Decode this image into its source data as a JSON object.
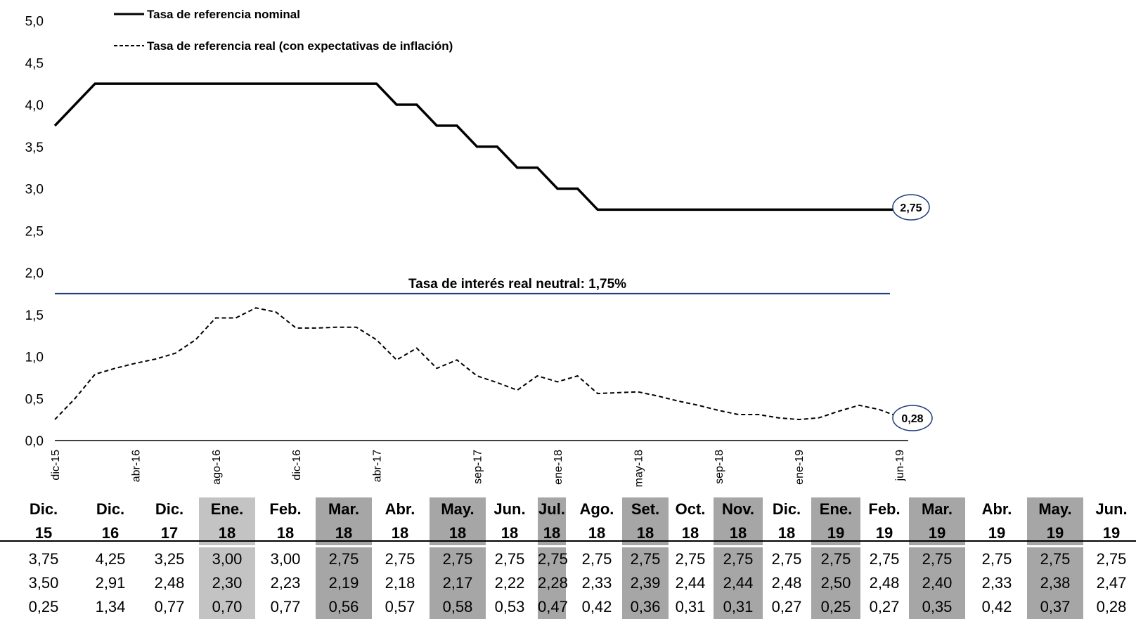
{
  "chart_data": {
    "type": "line",
    "y_ticks": [
      "0,0",
      "0,5",
      "1,0",
      "1,5",
      "2,0",
      "2,5",
      "3,0",
      "3,5",
      "4,0",
      "4,5",
      "5,0"
    ],
    "ylim": [
      0,
      5
    ],
    "x_ticks": [
      "dic-15",
      "abr-16",
      "ago-16",
      "dic-16",
      "abr-17",
      "sep-17",
      "ene-18",
      "may-18",
      "sep-18",
      "ene-19",
      "jun-19"
    ],
    "series": [
      {
        "name": "Tasa de referencia nominal",
        "style": "solid",
        "color": "#000000",
        "values": [
          3.75,
          4.0,
          4.25,
          4.25,
          4.25,
          4.25,
          4.25,
          4.25,
          4.25,
          4.25,
          4.25,
          4.25,
          4.25,
          4.25,
          4.25,
          4.25,
          4.25,
          4.0,
          4.0,
          3.75,
          3.75,
          3.5,
          3.5,
          3.25,
          3.25,
          3.0,
          3.0,
          2.75,
          2.75,
          2.75,
          2.75,
          2.75,
          2.75,
          2.75,
          2.75,
          2.75,
          2.75,
          2.75,
          2.75,
          2.75,
          2.75,
          2.75,
          2.75
        ]
      },
      {
        "name": "Tasa de referencia real (con expectativas de inflación)",
        "style": "dashed",
        "color": "#000000",
        "values": [
          0.25,
          0.5,
          0.79,
          0.86,
          0.92,
          0.97,
          1.04,
          1.2,
          1.46,
          1.46,
          1.58,
          1.53,
          1.34,
          1.34,
          1.35,
          1.35,
          1.2,
          0.96,
          1.1,
          0.86,
          0.96,
          0.77,
          0.69,
          0.6,
          0.77,
          0.7,
          0.77,
          0.56,
          0.57,
          0.58,
          0.53,
          0.47,
          0.42,
          0.36,
          0.31,
          0.31,
          0.27,
          0.25,
          0.27,
          0.35,
          0.42,
          0.37,
          0.28
        ]
      }
    ],
    "reference_line": {
      "label": "Tasa de interés real neutral: 1,75%",
      "value": 1.75,
      "color": "#1f3a7a"
    },
    "end_labels": [
      "2,75",
      "0,28"
    ]
  },
  "table": {
    "columns": [
      {
        "month": "Dic.",
        "year": "15",
        "nominal": "3,75",
        "expect": "3,50",
        "real": "0,25",
        "shade": "none"
      },
      {
        "month": "Dic.",
        "year": "16",
        "nominal": "4,25",
        "expect": "2,91",
        "real": "1,34",
        "shade": "none"
      },
      {
        "month": "Dic.",
        "year": "17",
        "nominal": "3,25",
        "expect": "2,48",
        "real": "0,77",
        "shade": "none"
      },
      {
        "month": "Ene.",
        "year": "18",
        "nominal": "3,00",
        "expect": "2,30",
        "real": "0,70",
        "shade": "light"
      },
      {
        "month": "Feb.",
        "year": "18",
        "nominal": "3,00",
        "expect": "2,23",
        "real": "0,77",
        "shade": "none"
      },
      {
        "month": "Mar.",
        "year": "18",
        "nominal": "2,75",
        "expect": "2,19",
        "real": "0,56",
        "shade": "dark"
      },
      {
        "month": "Abr.",
        "year": "18",
        "nominal": "2,75",
        "expect": "2,18",
        "real": "0,57",
        "shade": "none"
      },
      {
        "month": "May.",
        "year": "18",
        "nominal": "2,75",
        "expect": "2,17",
        "real": "0,58",
        "shade": "dark"
      },
      {
        "month": "Jun.",
        "year": "18",
        "nominal": "2,75",
        "expect": "2,22",
        "real": "0,53",
        "shade": "none"
      },
      {
        "month": "Jul.",
        "year": "18",
        "nominal": "2,75",
        "expect": "2,28",
        "real": "0,47",
        "shade": "dark"
      },
      {
        "month": "Ago.",
        "year": "18",
        "nominal": "2,75",
        "expect": "2,33",
        "real": "0,42",
        "shade": "none"
      },
      {
        "month": "Set.",
        "year": "18",
        "nominal": "2,75",
        "expect": "2,39",
        "real": "0,36",
        "shade": "dark"
      },
      {
        "month": "Oct.",
        "year": "18",
        "nominal": "2,75",
        "expect": "2,44",
        "real": "0,31",
        "shade": "none"
      },
      {
        "month": "Nov.",
        "year": "18",
        "nominal": "2,75",
        "expect": "2,44",
        "real": "0,31",
        "shade": "dark"
      },
      {
        "month": "Dic.",
        "year": "18",
        "nominal": "2,75",
        "expect": "2,48",
        "real": "0,27",
        "shade": "none"
      },
      {
        "month": "Ene.",
        "year": "19",
        "nominal": "2,75",
        "expect": "2,50",
        "real": "0,25",
        "shade": "dark"
      },
      {
        "month": "Feb.",
        "year": "19",
        "nominal": "2,75",
        "expect": "2,48",
        "real": "0,27",
        "shade": "none"
      },
      {
        "month": "Mar.",
        "year": "19",
        "nominal": "2,75",
        "expect": "2,40",
        "real": "0,35",
        "shade": "dark"
      },
      {
        "month": "Abr.",
        "year": "19",
        "nominal": "2,75",
        "expect": "2,33",
        "real": "0,42",
        "shade": "none"
      },
      {
        "month": "May.",
        "year": "19",
        "nominal": "2,75",
        "expect": "2,38",
        "real": "0,37",
        "shade": "dark"
      },
      {
        "month": "Jun.",
        "year": "19",
        "nominal": "2,75",
        "expect": "2,47",
        "real": "0,28",
        "shade": "none"
      }
    ]
  }
}
